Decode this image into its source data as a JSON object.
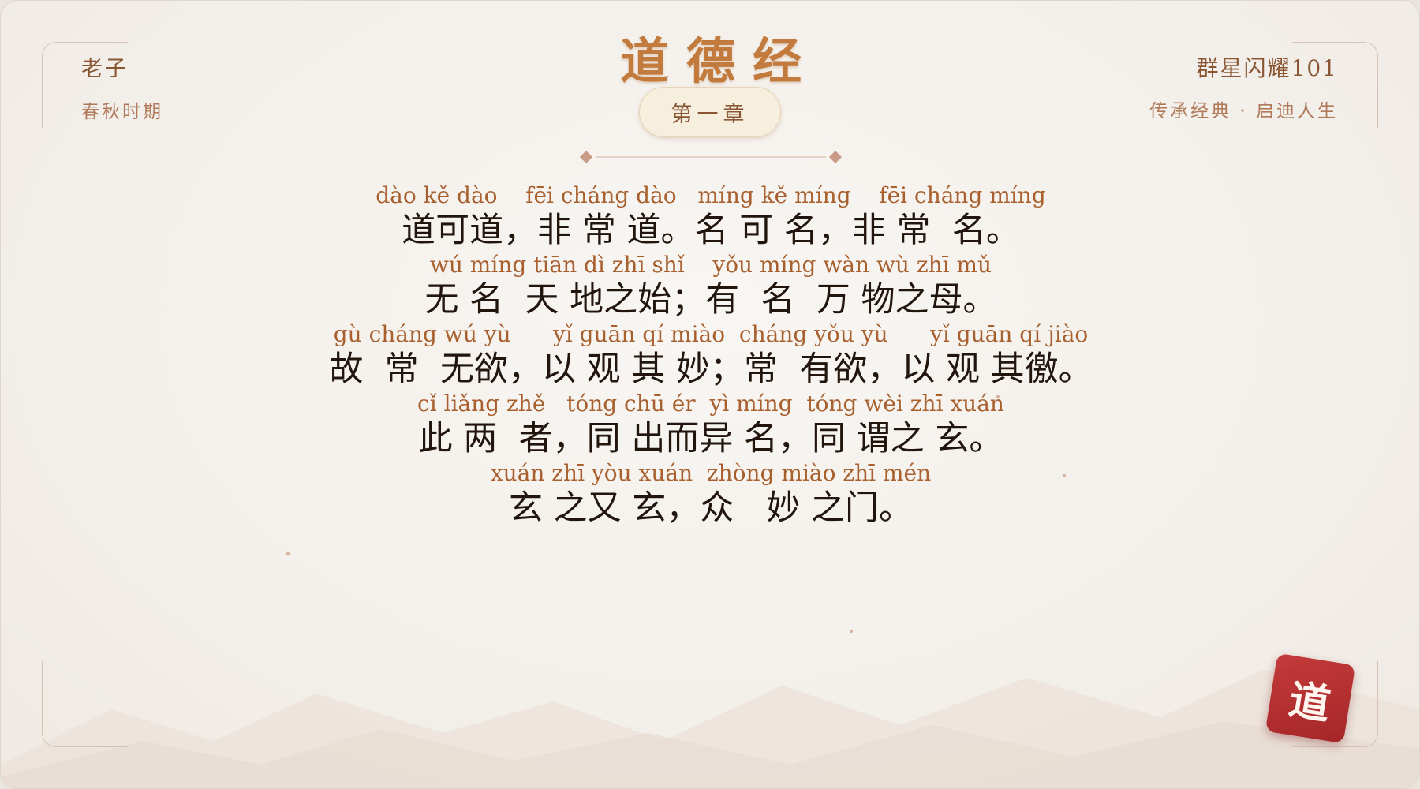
{
  "author": {
    "name": "老子",
    "era": "春秋时期"
  },
  "brand": {
    "name": "群星闪耀101",
    "tagline": "传承经典 · 启迪人生"
  },
  "title": "道德经",
  "chapter": "第一章",
  "verses": [
    {
      "pinyin": "dào kě dào    fēi cháng dào   míng kě míng    fēi cháng míng",
      "hanzi": "道可道，非 常 道。名 可 名，非 常  名。"
    },
    {
      "pinyin": "wú míng tiān dì zhī shǐ    yǒu míng wàn wù zhī mǔ",
      "hanzi": "无 名  天 地之始；有  名  万 物之母。"
    },
    {
      "pinyin": "gù cháng wú yù      yǐ guān qí miào  cháng yǒu yù      yǐ guān qí jiào",
      "hanzi": "故  常  无欲，以 观 其 妙；常  有欲，以 观 其徼。"
    },
    {
      "pinyin": "cǐ liǎng zhě   tóng chū ér  yì míng  tóng wèi zhī xuán",
      "hanzi": "此 两  者，同 出而异 名，同 谓之 玄。"
    },
    {
      "pinyin": "xuán zhī yòu xuán  zhòng miào zhī mén",
      "hanzi": "玄 之又 玄，众   妙 之门。"
    }
  ],
  "seal": {
    "char": "道"
  },
  "colors": {
    "accent": "#c27b3d",
    "text": "#22150e",
    "pinyin": "#a8602e",
    "seal": "#b32e30"
  }
}
